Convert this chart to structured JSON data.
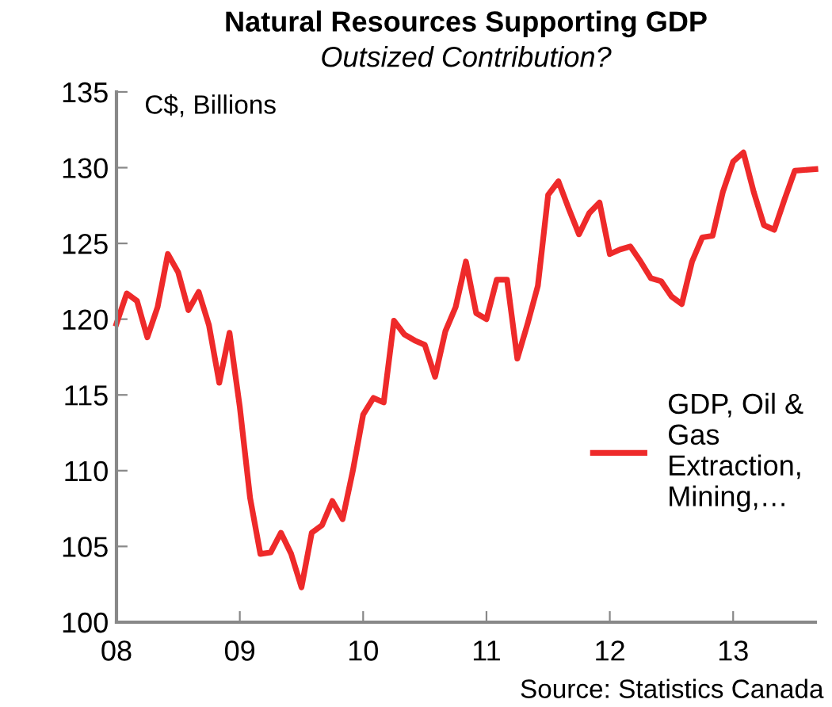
{
  "chart_data": {
    "type": "line",
    "title": "Natural Resources Supporting GDP",
    "subtitle": "Outsized Contribution?",
    "ylabel": "C$, Billions",
    "annotations": [
      "Source: Statistics Canada"
    ],
    "x": [
      "2008-01",
      "2008-02",
      "2008-03",
      "2008-04",
      "2008-05",
      "2008-06",
      "2008-07",
      "2008-08",
      "2008-09",
      "2008-10",
      "2008-11",
      "2008-12",
      "2009-01",
      "2009-02",
      "2009-03",
      "2009-04",
      "2009-05",
      "2009-06",
      "2009-07",
      "2009-08",
      "2009-09",
      "2009-10",
      "2009-11",
      "2009-12",
      "2010-01",
      "2010-02",
      "2010-03",
      "2010-04",
      "2010-05",
      "2010-06",
      "2010-07",
      "2010-08",
      "2010-09",
      "2010-10",
      "2010-11",
      "2010-12",
      "2011-01",
      "2011-02",
      "2011-03",
      "2011-04",
      "2011-05",
      "2011-06",
      "2011-07",
      "2011-08",
      "2011-09",
      "2011-10",
      "2011-11",
      "2011-12",
      "2012-01",
      "2012-02",
      "2012-03",
      "2012-04",
      "2012-05",
      "2012-06",
      "2012-07",
      "2012-08",
      "2012-09",
      "2012-10",
      "2012-11",
      "2012-12",
      "2013-01",
      "2013-02",
      "2013-03",
      "2013-04",
      "2013-05",
      "2013-06",
      "2013-07",
      "2013-09"
    ],
    "series": [
      {
        "name": "GDP, Oil & Gas Extraction, Mining,…",
        "color": "#ee2a2a",
        "values": [
          119.7,
          121.7,
          121.2,
          118.8,
          120.8,
          124.3,
          123.1,
          120.6,
          121.8,
          119.6,
          115.8,
          119.1,
          114.2,
          108.2,
          104.5,
          104.6,
          105.9,
          104.5,
          102.3,
          105.9,
          106.4,
          108.0,
          106.8,
          110.0,
          113.7,
          114.8,
          114.5,
          119.9,
          119.0,
          118.6,
          118.3,
          116.2,
          119.2,
          120.8,
          123.8,
          120.4,
          120.0,
          122.6,
          122.6,
          117.4,
          119.7,
          122.2,
          128.2,
          129.1,
          127.3,
          125.6,
          127.0,
          127.7,
          124.3,
          124.6,
          124.8,
          123.8,
          122.7,
          122.5,
          121.5,
          121.0,
          123.8,
          125.4,
          125.5,
          128.4,
          130.4,
          131.0,
          128.4,
          126.2,
          125.9,
          127.9,
          129.8,
          129.9
        ]
      }
    ],
    "xlim": [
      "2008-01",
      "2013-09"
    ],
    "xticks": [
      {
        "value": "2008-01",
        "label": "08"
      },
      {
        "value": "2009-01",
        "label": "09"
      },
      {
        "value": "2010-01",
        "label": "10"
      },
      {
        "value": "2011-01",
        "label": "11"
      },
      {
        "value": "2012-01",
        "label": "12"
      },
      {
        "value": "2013-01",
        "label": "13"
      }
    ],
    "ylim": [
      100,
      135
    ],
    "yticks": [
      100,
      105,
      110,
      115,
      120,
      125,
      130,
      135
    ],
    "legend": "center right",
    "grid": false,
    "line_style": "solid",
    "marker": "none"
  }
}
